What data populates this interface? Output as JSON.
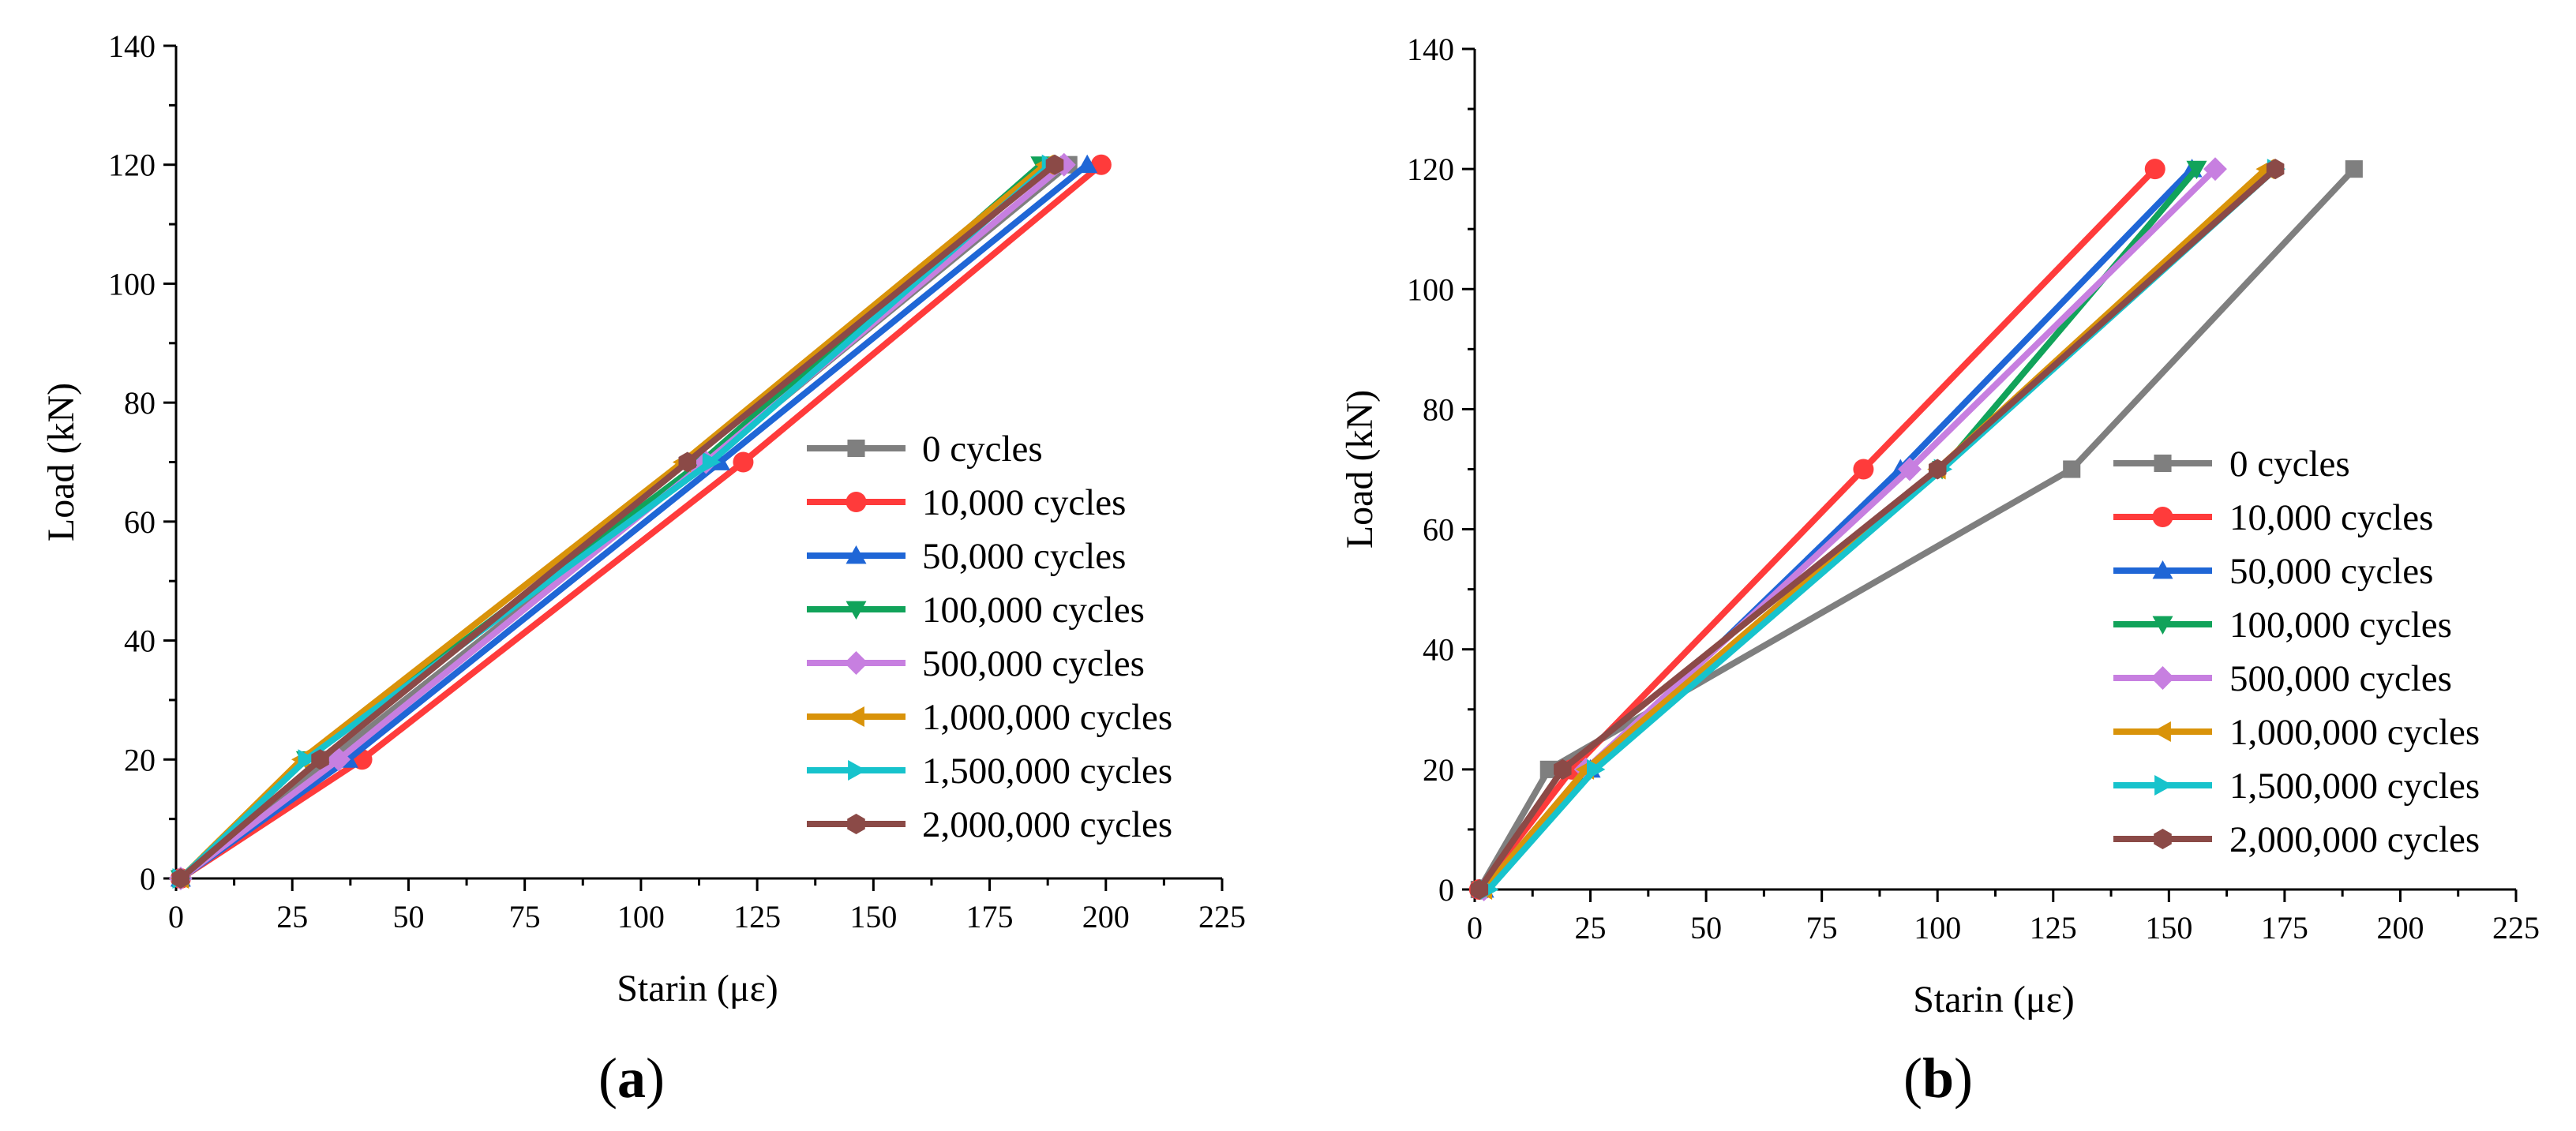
{
  "chart_data": [
    {
      "type": "line",
      "panel_label": "a",
      "xlabel": "Starin (με)",
      "ylabel": "Load (kN)",
      "xlim": [
        0,
        225
      ],
      "ylim": [
        0,
        140
      ],
      "xticks": [
        0,
        25,
        50,
        75,
        100,
        125,
        150,
        175,
        200,
        225
      ],
      "yticks": [
        0,
        20,
        40,
        60,
        80,
        100,
        120,
        140
      ],
      "legend_position": "lower-right",
      "series": [
        {
          "name": "0 cycles",
          "color": "#7f7f7f",
          "marker": "square",
          "points": [
            [
              1,
              0
            ],
            [
              33,
              20
            ],
            [
              114,
              70
            ],
            [
              192,
              120
            ]
          ]
        },
        {
          "name": "10,000 cycles",
          "color": "#ff3b3b",
          "marker": "circle",
          "points": [
            [
              1,
              0
            ],
            [
              40,
              20
            ],
            [
              122,
              70
            ],
            [
              199,
              120
            ]
          ]
        },
        {
          "name": "50,000 cycles",
          "color": "#1f66d6",
          "marker": "triangle-up",
          "points": [
            [
              1,
              0
            ],
            [
              37,
              20
            ],
            [
              117,
              70
            ],
            [
              196,
              120
            ]
          ]
        },
        {
          "name": "100,000 cycles",
          "color": "#11a35a",
          "marker": "triangle-down",
          "points": [
            [
              1,
              0
            ],
            [
              28,
              20
            ],
            [
              113,
              70
            ],
            [
              186,
              120
            ]
          ]
        },
        {
          "name": "500,000 cycles",
          "color": "#c77fe0",
          "marker": "diamond",
          "points": [
            [
              1,
              0
            ],
            [
              35,
              20
            ],
            [
              114,
              70
            ],
            [
              191,
              120
            ]
          ]
        },
        {
          "name": "1,000,000 cycles",
          "color": "#d9930a",
          "marker": "triangle-left",
          "points": [
            [
              1,
              0
            ],
            [
              27,
              20
            ],
            [
              109,
              70
            ],
            [
              187,
              120
            ]
          ]
        },
        {
          "name": "1,500,000 cycles",
          "color": "#17c3cc",
          "marker": "triangle-right",
          "points": [
            [
              1,
              0
            ],
            [
              28,
              20
            ],
            [
              115,
              70
            ],
            [
              188,
              120
            ]
          ]
        },
        {
          "name": "2,000,000 cycles",
          "color": "#8b4a47",
          "marker": "hexagon",
          "points": [
            [
              1,
              0
            ],
            [
              31,
              20
            ],
            [
              110,
              70
            ],
            [
              189,
              120
            ]
          ]
        }
      ]
    },
    {
      "type": "line",
      "panel_label": "b",
      "xlabel": "Starin (με)",
      "ylabel": "Load (kN)",
      "xlim": [
        0,
        225
      ],
      "ylim": [
        0,
        140
      ],
      "xticks": [
        0,
        25,
        50,
        75,
        100,
        125,
        150,
        175,
        200,
        225
      ],
      "yticks": [
        0,
        20,
        40,
        60,
        80,
        100,
        120,
        140
      ],
      "legend_position": "lower-right",
      "series": [
        {
          "name": "0 cycles",
          "color": "#7f7f7f",
          "marker": "square",
          "points": [
            [
              1,
              0
            ],
            [
              16,
              20
            ],
            [
              129,
              70
            ],
            [
              190,
              120
            ]
          ]
        },
        {
          "name": "10,000 cycles",
          "color": "#ff3b3b",
          "marker": "circle",
          "points": [
            [
              1,
              0
            ],
            [
              21,
              20
            ],
            [
              84,
              70
            ],
            [
              147,
              120
            ]
          ]
        },
        {
          "name": "50,000 cycles",
          "color": "#1f66d6",
          "marker": "triangle-up",
          "points": [
            [
              2,
              0
            ],
            [
              25,
              20
            ],
            [
              92,
              70
            ],
            [
              155,
              120
            ]
          ]
        },
        {
          "name": "100,000 cycles",
          "color": "#11a35a",
          "marker": "triangle-down",
          "points": [
            [
              2,
              0
            ],
            [
              25,
              20
            ],
            [
              101,
              70
            ],
            [
              156,
              120
            ]
          ]
        },
        {
          "name": "500,000 cycles",
          "color": "#c77fe0",
          "marker": "diamond",
          "points": [
            [
              2,
              0
            ],
            [
              24,
              20
            ],
            [
              94,
              70
            ],
            [
              160,
              120
            ]
          ]
        },
        {
          "name": "1,000,000 cycles",
          "color": "#d9930a",
          "marker": "triangle-left",
          "points": [
            [
              2,
              0
            ],
            [
              24,
              20
            ],
            [
              100,
              70
            ],
            [
              171,
              120
            ]
          ]
        },
        {
          "name": "1,500,000 cycles",
          "color": "#17c3cc",
          "marker": "triangle-right",
          "points": [
            [
              3,
              0
            ],
            [
              26,
              20
            ],
            [
              101,
              70
            ],
            [
              173,
              120
            ]
          ]
        },
        {
          "name": "2,000,000 cycles",
          "color": "#8b4a47",
          "marker": "hexagon",
          "points": [
            [
              1,
              0
            ],
            [
              19,
              20
            ],
            [
              100,
              70
            ],
            [
              173,
              120
            ]
          ]
        }
      ]
    }
  ]
}
